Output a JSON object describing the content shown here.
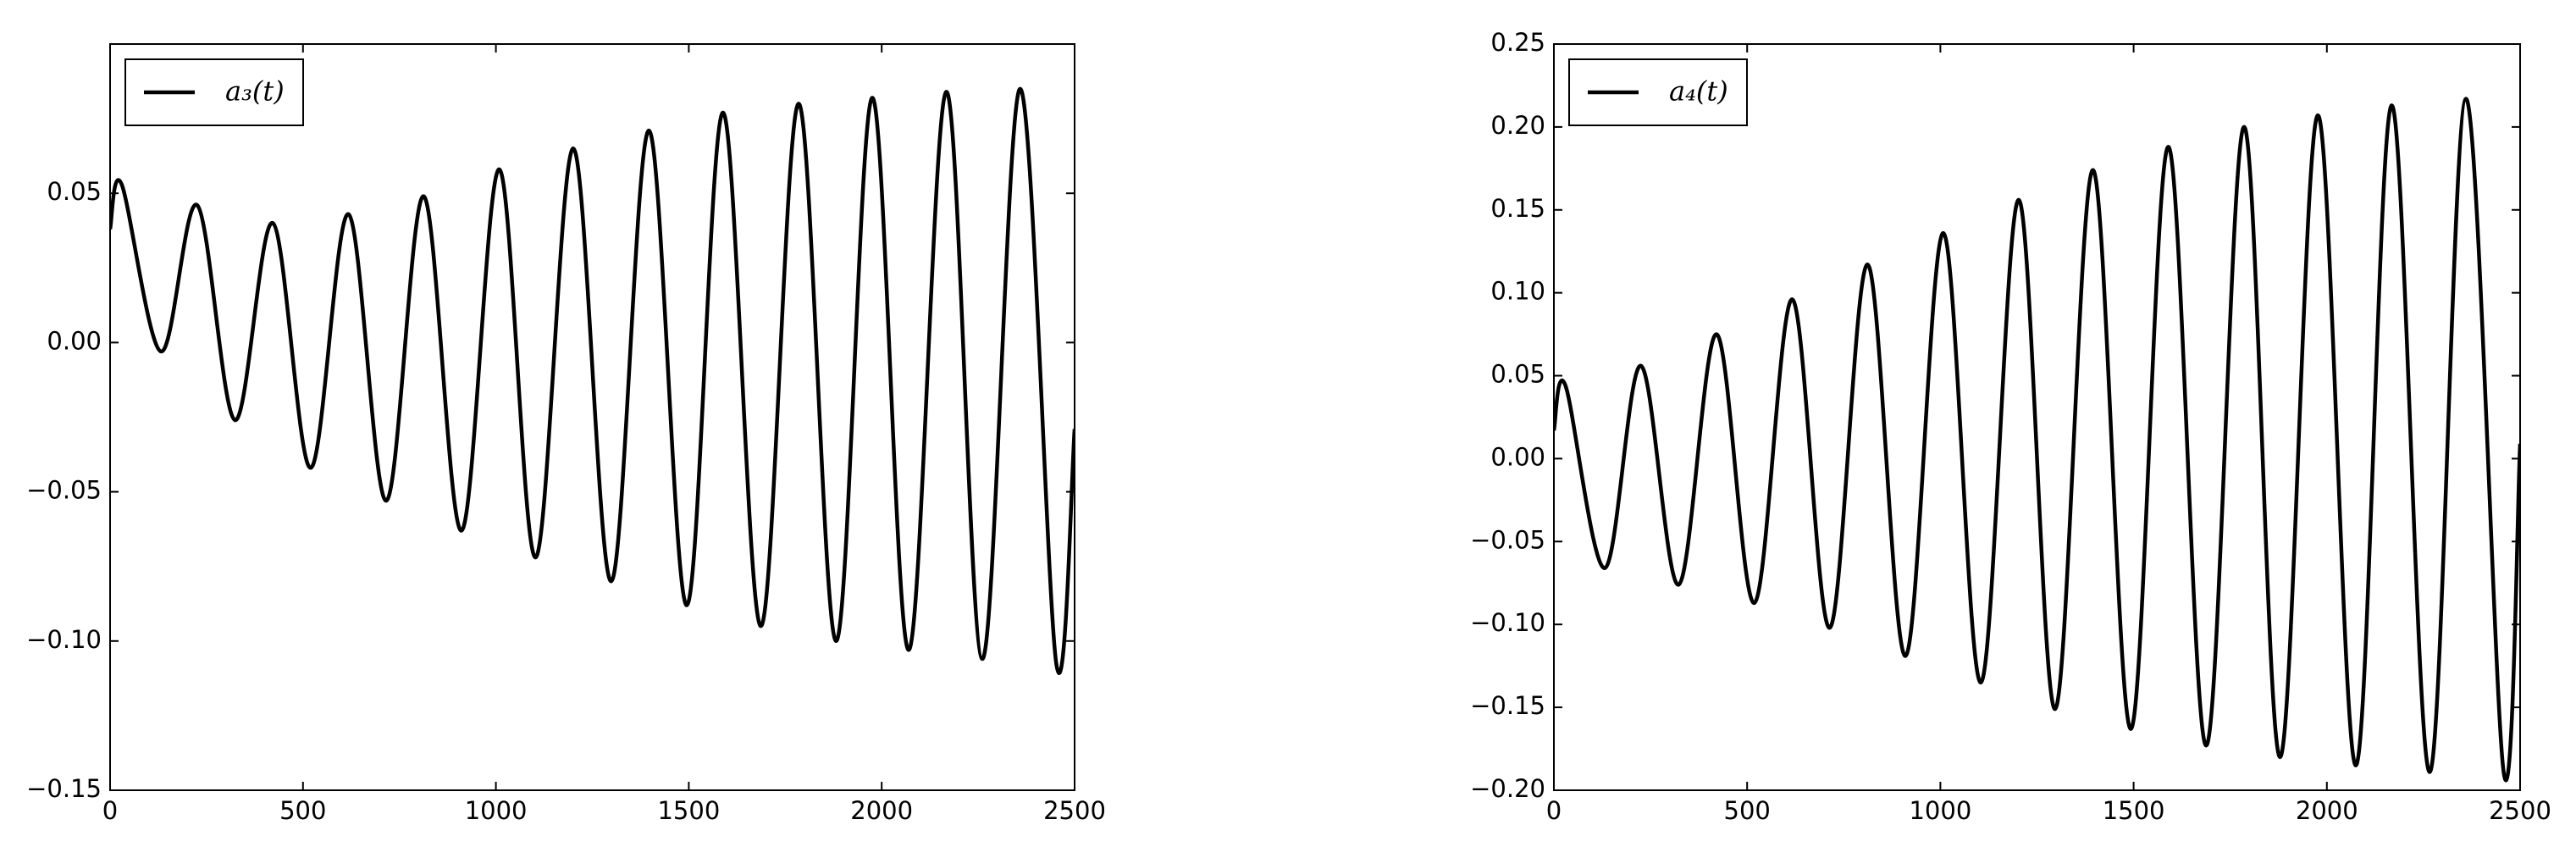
{
  "chart_data": [
    {
      "type": "line",
      "legend": "upper left",
      "grid": false,
      "x": [
        0,
        30,
        132,
        226,
        324,
        422,
        520,
        618,
        716,
        813,
        911,
        1009,
        1103,
        1201,
        1299,
        1397,
        1495,
        1589,
        1687,
        1785,
        1882,
        1976,
        2070,
        2168,
        2261,
        2359,
        2453,
        2500
      ],
      "series": [
        {
          "name": "a₃(t)",
          "color": "#000000",
          "values": [
            0.038,
            0.053,
            -0.003,
            0.046,
            -0.026,
            0.04,
            -0.042,
            0.043,
            -0.053,
            0.049,
            -0.063,
            0.058,
            -0.072,
            0.065,
            -0.08,
            0.071,
            -0.088,
            0.077,
            -0.095,
            0.08,
            -0.1,
            0.082,
            -0.103,
            0.084,
            -0.106,
            0.085,
            -0.108,
            -0.029
          ]
        }
      ],
      "xlim": [
        0,
        2500
      ],
      "xticks": [
        0,
        500,
        1000,
        1500,
        2000,
        2500
      ],
      "ylim": [
        -0.15,
        0.1
      ],
      "yticks": [
        {
          "value": -0.15,
          "label": "−0.15"
        },
        {
          "value": -0.1,
          "label": "−0.10"
        },
        {
          "value": -0.05,
          "label": "−0.05"
        },
        {
          "value": 0,
          "label": "0.00"
        },
        {
          "value": 0.05,
          "label": "0.05"
        }
      ]
    },
    {
      "type": "line",
      "legend": "upper left",
      "grid": false,
      "x": [
        0,
        30,
        132,
        225,
        323,
        421,
        519,
        617,
        714,
        812,
        910,
        1008,
        1105,
        1203,
        1297,
        1395,
        1493,
        1590,
        1688,
        1786,
        1879,
        1977,
        2075,
        2168,
        2266,
        2360,
        2458,
        2500
      ],
      "series": [
        {
          "name": "a₄(t)",
          "color": "#000000",
          "values": [
            0.017,
            0.044,
            -0.066,
            0.056,
            -0.076,
            0.075,
            -0.087,
            0.096,
            -0.102,
            0.117,
            -0.119,
            0.136,
            -0.135,
            0.156,
            -0.151,
            0.174,
            -0.163,
            0.188,
            -0.173,
            0.2,
            -0.18,
            0.207,
            -0.185,
            0.213,
            -0.189,
            0.217,
            -0.19,
            0.009
          ]
        }
      ],
      "xlim": [
        0,
        2500
      ],
      "xticks": [
        0,
        500,
        1000,
        1500,
        2000,
        2500
      ],
      "ylim": [
        -0.2,
        0.25
      ],
      "yticks": [
        {
          "value": -0.2,
          "label": "−0.20"
        },
        {
          "value": -0.15,
          "label": "−0.15"
        },
        {
          "value": -0.1,
          "label": "−0.10"
        },
        {
          "value": -0.05,
          "label": "−0.05"
        },
        {
          "value": 0,
          "label": "0.00"
        },
        {
          "value": 0.05,
          "label": "0.05"
        },
        {
          "value": 0.1,
          "label": "0.10"
        },
        {
          "value": 0.15,
          "label": "0.15"
        },
        {
          "value": 0.2,
          "label": "0.20"
        },
        {
          "value": 0.25,
          "label": "0.25"
        }
      ]
    }
  ]
}
